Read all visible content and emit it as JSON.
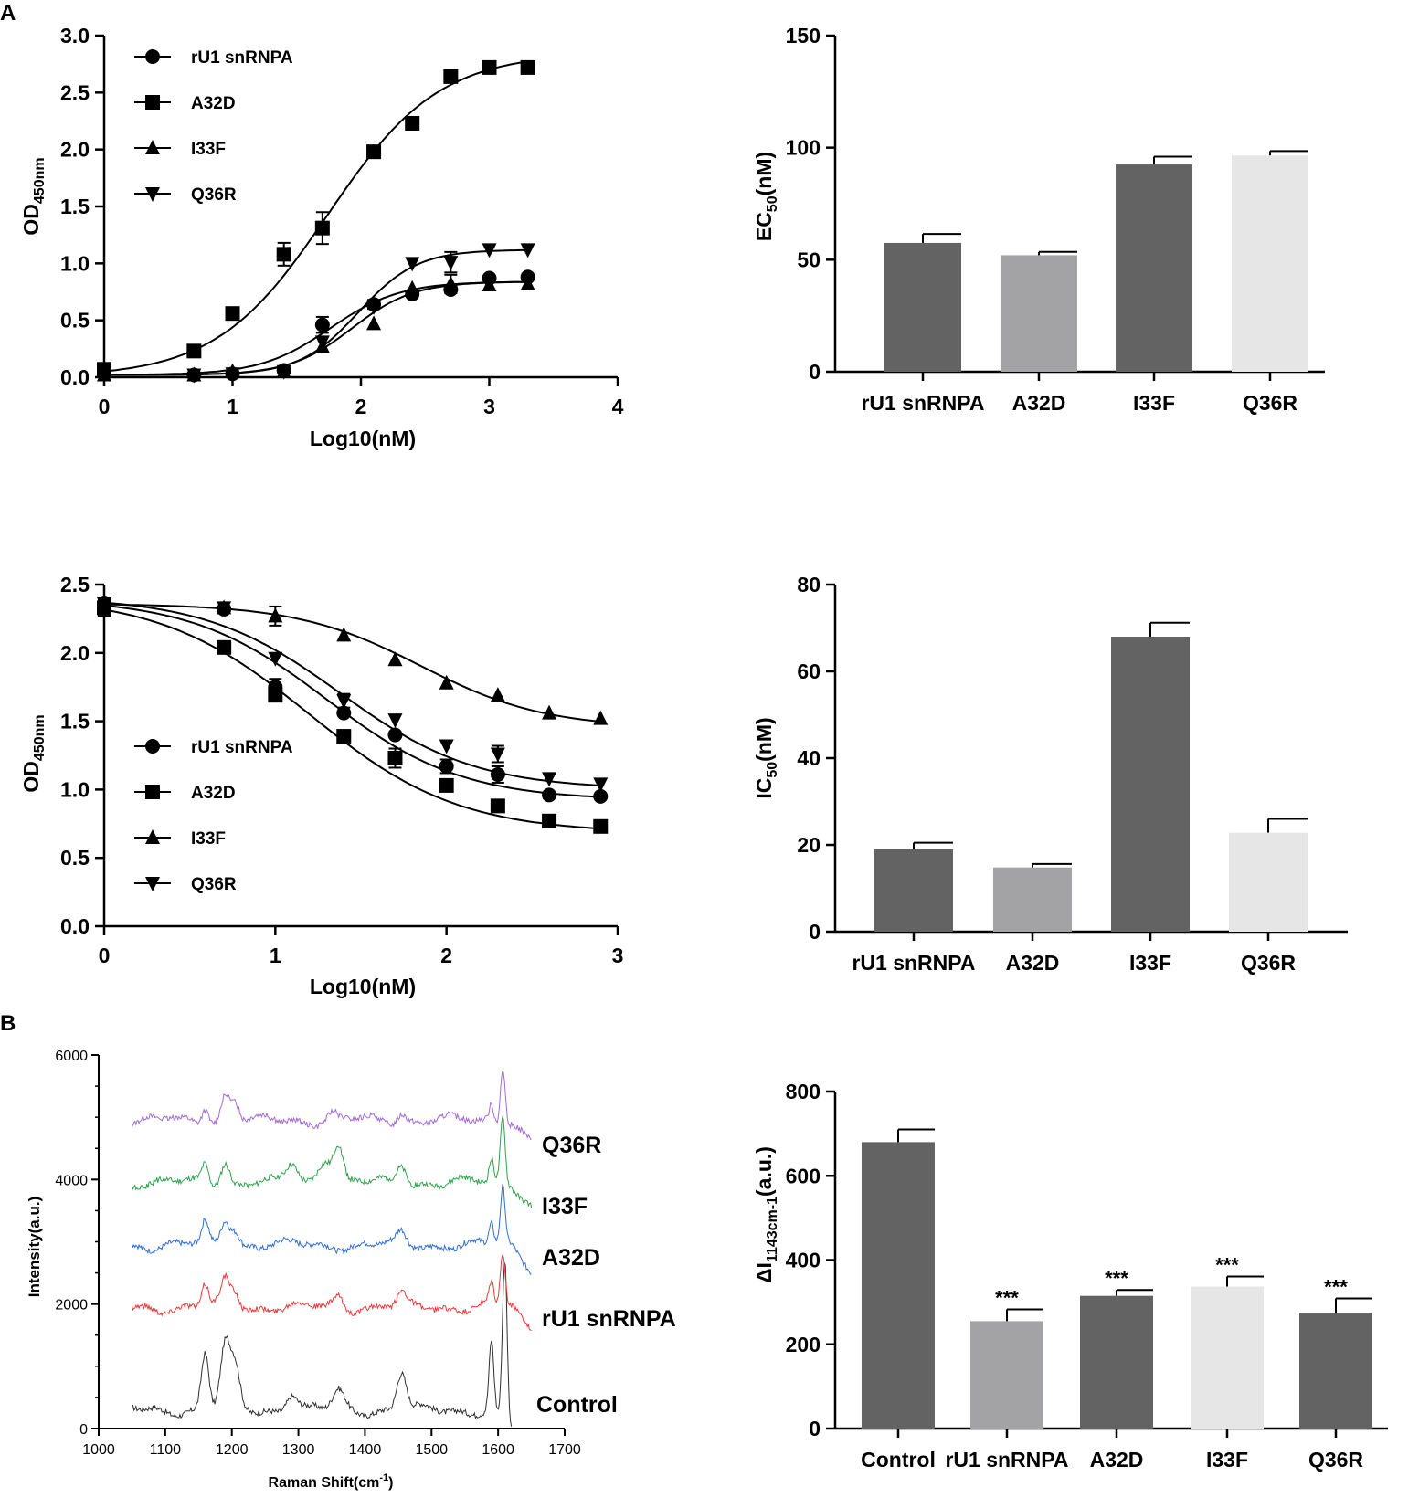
{
  "panel_labels": [
    "A",
    "B"
  ],
  "chart_data": [
    {
      "id": "ec-curve",
      "type": "scatter",
      "title": "",
      "xlabel": "Log10(nM)",
      "ylabel": "OD",
      "ylabel_sub": "450nm",
      "xlim": [
        0,
        4
      ],
      "ylim": [
        0,
        3.0
      ],
      "xticks": [
        "0",
        "1",
        "2",
        "3",
        "4"
      ],
      "yticks": [
        "0.0",
        "0.5",
        "1.0",
        "1.5",
        "2.0",
        "2.5",
        "3.0"
      ],
      "x": [
        0,
        0.7,
        1.0,
        1.4,
        1.7,
        2.1,
        2.4,
        2.7,
        3.0,
        3.3
      ],
      "series": [
        {
          "name": "rU1 snRNPA",
          "marker": "circle",
          "values": [
            0.05,
            0.02,
            0.03,
            0.06,
            0.46,
            0.64,
            0.73,
            0.77,
            0.87,
            0.88
          ],
          "errors": [
            0,
            0,
            0,
            0,
            0.07,
            0.04,
            0,
            0.03,
            0,
            0
          ]
        },
        {
          "name": "A32D",
          "marker": "square",
          "values": [
            0.07,
            0.23,
            0.56,
            1.08,
            1.31,
            1.98,
            2.23,
            2.64,
            2.72,
            2.72
          ],
          "errors": [
            0,
            0,
            0,
            0.1,
            0.14,
            0,
            0,
            0,
            0,
            0
          ]
        },
        {
          "name": "I33F",
          "marker": "triangle-up",
          "values": [
            0.02,
            0.02,
            0.05,
            0.05,
            0.27,
            0.47,
            0.78,
            0.82,
            0.81,
            0.82
          ],
          "errors": [
            0,
            0,
            0,
            0,
            0,
            0,
            0,
            0.08,
            0,
            0
          ]
        },
        {
          "name": "Q36R",
          "marker": "triangle-down",
          "values": [
            0.03,
            0.02,
            0.03,
            0.05,
            0.31,
            0.62,
            1.0,
            1.01,
            1.12,
            1.12
          ],
          "errors": [
            0,
            0,
            0,
            0,
            0,
            0,
            0,
            0.09,
            0,
            0
          ]
        }
      ],
      "fits": [
        {
          "name": "rU1 snRNPA",
          "bottom": 0.02,
          "top": 0.84,
          "ec50": 1.76,
          "hill": 1.6
        },
        {
          "name": "A32D",
          "bottom": 0.0,
          "top": 2.85,
          "ec50": 1.74,
          "hill": 1.0
        },
        {
          "name": "I33F",
          "bottom": 0.02,
          "top": 0.84,
          "ec50": 1.93,
          "hill": 1.8
        },
        {
          "name": "Q36R",
          "bottom": 0.02,
          "top": 1.12,
          "ec50": 1.98,
          "hill": 1.9
        }
      ]
    },
    {
      "id": "ec50-bar",
      "type": "bar",
      "title": "",
      "xlabel": "",
      "ylabel": "EC",
      "ylabel_sub": "50",
      "ylabel_suffix": "(nM)",
      "ylim": [
        0,
        150
      ],
      "yticks": [
        "0",
        "50",
        "100",
        "150"
      ],
      "categories": [
        "rU1 snRNPA",
        "A32D",
        "I33F",
        "Q36R"
      ],
      "values": [
        57.5,
        52,
        92.5,
        96.5
      ],
      "errors": [
        4,
        1.5,
        3.5,
        2
      ],
      "colors": [
        "#636363",
        "#a3a3a6",
        "#636363",
        "#e6e6e6"
      ]
    },
    {
      "id": "ic-curve",
      "type": "scatter",
      "title": "",
      "xlabel": "Log10(nM)",
      "ylabel": "OD",
      "ylabel_sub": "450nm",
      "xlim": [
        0,
        3
      ],
      "ylim": [
        0,
        2.5
      ],
      "xticks": [
        "0",
        "1",
        "2",
        "3"
      ],
      "yticks": [
        "0.0",
        "0.5",
        "1.0",
        "1.5",
        "2.0",
        "2.5"
      ],
      "x": [
        0,
        0.7,
        1.0,
        1.4,
        1.7,
        2.0,
        2.3,
        2.6,
        2.9
      ],
      "series": [
        {
          "name": "rU1 snRNPA",
          "marker": "circle",
          "values": [
            2.36,
            2.32,
            1.75,
            1.56,
            1.4,
            1.17,
            1.11,
            0.96,
            0.95
          ],
          "errors": [
            0,
            0.02,
            0.06,
            0,
            0,
            0.05,
            0.06,
            0,
            0
          ]
        },
        {
          "name": "A32D",
          "marker": "square",
          "values": [
            2.33,
            2.04,
            1.69,
            1.39,
            1.23,
            1.03,
            0.88,
            0.77,
            0.73
          ],
          "errors": [
            0.06,
            0,
            0.04,
            0,
            0.07,
            0,
            0,
            0,
            0
          ]
        },
        {
          "name": "I33F",
          "marker": "triangle-up",
          "values": [
            2.36,
            2.33,
            2.27,
            2.13,
            1.95,
            1.78,
            1.69,
            1.56,
            1.52
          ],
          "errors": [
            0,
            0,
            0.07,
            0,
            0,
            0,
            0,
            0,
            0
          ]
        },
        {
          "name": "Q36R",
          "marker": "triangle-down",
          "values": [
            2.36,
            2.33,
            1.96,
            1.65,
            1.51,
            1.32,
            1.26,
            1.08,
            1.04
          ],
          "errors": [
            0,
            0,
            0,
            0.05,
            0,
            0,
            0.06,
            0,
            0
          ]
        }
      ],
      "fits": [
        {
          "name": "rU1 snRNPA",
          "bottom": 0.92,
          "top": 2.4,
          "ic50": 1.3,
          "hill": 1.1
        },
        {
          "name": "A32D",
          "bottom": 0.68,
          "top": 2.42,
          "ic50": 1.2,
          "hill": 1.0
        },
        {
          "name": "I33F",
          "bottom": 1.45,
          "top": 2.36,
          "ic50": 1.85,
          "hill": 1.2
        },
        {
          "name": "Q36R",
          "bottom": 1.0,
          "top": 2.41,
          "ic50": 1.38,
          "hill": 1.1
        }
      ]
    },
    {
      "id": "ic50-bar",
      "type": "bar",
      "title": "",
      "xlabel": "",
      "ylabel": "IC",
      "ylabel_sub": "50",
      "ylabel_suffix": "(nM)",
      "ylim": [
        0,
        80
      ],
      "yticks": [
        "0",
        "20",
        "40",
        "60",
        "80"
      ],
      "categories": [
        "rU1 snRNPA",
        "A32D",
        "I33F",
        "Q36R"
      ],
      "values": [
        19,
        14.8,
        68,
        22.8
      ],
      "errors": [
        1.5,
        0.8,
        3.2,
        3.2
      ],
      "colors": [
        "#636363",
        "#a3a3a6",
        "#636363",
        "#e6e6e6"
      ]
    },
    {
      "id": "raman-spectra",
      "type": "line",
      "title": "",
      "xlabel": "Raman Shift(cm",
      "xlabel_sup": "-1",
      "xlabel_end": ")",
      "ylabel": "Intensity(a.u.)",
      "xlim": [
        1000,
        1700
      ],
      "ylim": [
        0,
        6000
      ],
      "xticks": [
        "1000",
        "1100",
        "1200",
        "1300",
        "1400",
        "1500",
        "1600",
        "1700"
      ],
      "yticks": [
        "0",
        "2000",
        "4000",
        "6000"
      ],
      "series": [
        {
          "name": "Control",
          "color": "#303030",
          "baseline": 300,
          "range": [
            1050,
            1620
          ],
          "peaks": [
            [
              1160,
              900,
              8
            ],
            [
              1190,
              1000,
              10
            ],
            [
              1205,
              650,
              10
            ],
            [
              1290,
              280,
              12
            ],
            [
              1360,
              300,
              12
            ],
            [
              1455,
              600,
              10
            ],
            [
              1590,
              1100,
              5
            ],
            [
              1610,
              2600,
              5
            ]
          ]
        },
        {
          "name": "rU1 snRNPA",
          "color": "#e83a3a",
          "baseline": 1950,
          "range": [
            1050,
            1650
          ],
          "peaks": [
            [
              1160,
              350,
              7
            ],
            [
              1190,
              420,
              9
            ],
            [
              1205,
              250,
              9
            ],
            [
              1360,
              180,
              10
            ],
            [
              1455,
              200,
              9
            ],
            [
              1590,
              350,
              5
            ],
            [
              1607,
              850,
              5
            ]
          ]
        },
        {
          "name": "A32D",
          "color": "#2e6fd6",
          "baseline": 2950,
          "range": [
            1050,
            1650
          ],
          "peaks": [
            [
              1160,
              330,
              7
            ],
            [
              1190,
              420,
              9
            ],
            [
              1205,
              250,
              9
            ],
            [
              1455,
              180,
              9
            ],
            [
              1590,
              330,
              5
            ],
            [
              1607,
              900,
              5
            ]
          ]
        },
        {
          "name": "I33F",
          "color": "#2aa34a",
          "baseline": 3950,
          "range": [
            1050,
            1650
          ],
          "peaks": [
            [
              1160,
              300,
              7
            ],
            [
              1190,
              350,
              9
            ],
            [
              1290,
              300,
              12
            ],
            [
              1340,
              400,
              14
            ],
            [
              1360,
              600,
              10
            ],
            [
              1455,
              300,
              10
            ],
            [
              1590,
              350,
              5
            ],
            [
              1607,
              1050,
              5
            ]
          ]
        },
        {
          "name": "Q36R",
          "color": "#a36ad6",
          "baseline": 4950,
          "range": [
            1050,
            1650
          ],
          "peaks": [
            [
              1160,
              250,
              7
            ],
            [
              1190,
              400,
              9
            ],
            [
              1205,
              300,
              9
            ],
            [
              1350,
              120,
              10
            ],
            [
              1455,
              150,
              9
            ],
            [
              1590,
              280,
              5
            ],
            [
              1607,
              900,
              5
            ]
          ]
        }
      ]
    },
    {
      "id": "delta-i-bar",
      "type": "bar",
      "title": "",
      "xlabel": "",
      "ylabel": "ΔI",
      "ylabel_sub": "1143cm-1",
      "ylabel_suffix": "(a.u.)",
      "ylim": [
        0,
        800
      ],
      "yticks": [
        "0",
        "200",
        "400",
        "600",
        "800"
      ],
      "categories": [
        "Control",
        "rU1 snRNPA",
        "A32D",
        "I33F",
        "Q36R"
      ],
      "values": [
        680,
        255,
        315,
        337,
        275
      ],
      "errors": [
        30,
        28,
        14,
        24,
        34
      ],
      "significance": [
        "",
        "***",
        "***",
        "***",
        "***"
      ],
      "colors": [
        "#636363",
        "#a3a3a6",
        "#636363",
        "#e6e6e6",
        "#636363"
      ]
    }
  ]
}
